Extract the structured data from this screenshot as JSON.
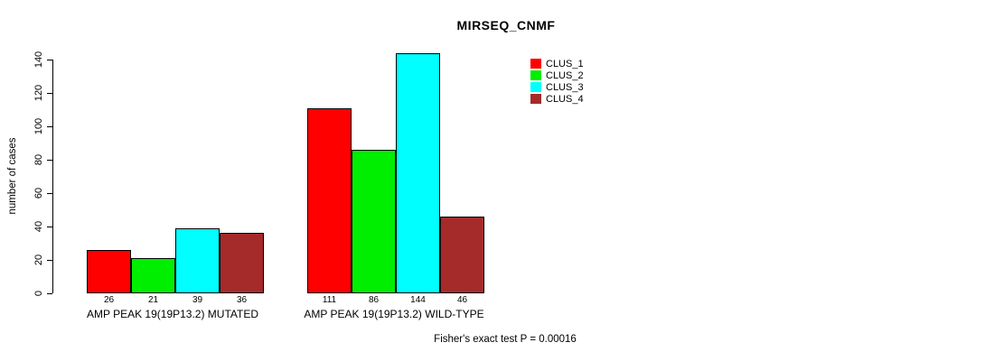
{
  "title": "MIRSEQ_CNMF",
  "chart_data": {
    "type": "bar",
    "title": "MIRSEQ_CNMF",
    "xlabel": "",
    "ylabel": "number of cases",
    "ylim": [
      0,
      140
    ],
    "yticks": [
      0,
      20,
      40,
      60,
      80,
      100,
      120,
      140
    ],
    "grid": false,
    "legend_position": "top-right",
    "categories": [
      "AMP PEAK 19(19P13.2) MUTATED",
      "AMP PEAK 19(19P13.2) WILD-TYPE"
    ],
    "series": [
      {
        "name": "CLUS_1",
        "color": "#FF0000",
        "values": [
          26,
          111
        ]
      },
      {
        "name": "CLUS_2",
        "color": "#00EE00",
        "values": [
          21,
          86
        ]
      },
      {
        "name": "CLUS_3",
        "color": "#00FFFF",
        "values": [
          39,
          144
        ]
      },
      {
        "name": "CLUS_4",
        "color": "#A52A2A",
        "values": [
          36,
          46
        ]
      }
    ],
    "bar_value_labels": [
      [
        26,
        21,
        39,
        36
      ],
      [
        111,
        86,
        144,
        46
      ]
    ],
    "annotation": "Fisher's exact test P = 0.00016"
  },
  "colors": {
    "axis": "#000000",
    "bar_border": "#000000",
    "background": "#FFFFFF"
  }
}
